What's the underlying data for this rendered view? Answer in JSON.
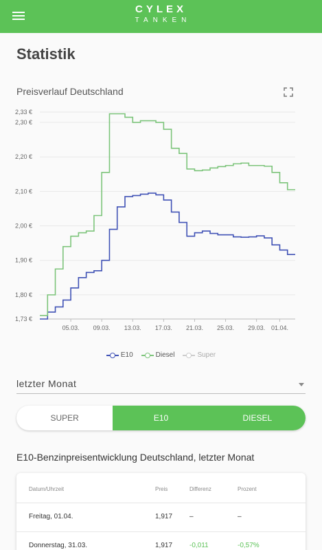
{
  "appbar": {
    "logo_top": "CYLEX",
    "logo_bottom": "TANKEN",
    "brand_color": "#5cc257"
  },
  "page": {
    "title": "Statistik"
  },
  "chart": {
    "title": "Preisverlauf Deutschland"
  },
  "chart_data": {
    "type": "line",
    "step": true,
    "xticks": [
      "05.03.",
      "09.03.",
      "13.03.",
      "17.03.",
      "21.03.",
      "25.03.",
      "29.03.",
      "01.04."
    ],
    "yticks": [
      "1,73 €",
      "1,80 €",
      "1,90 €",
      "2,00 €",
      "2,10 €",
      "2,20 €",
      "2,30 €",
      "2,33 €"
    ],
    "ytick_values": [
      1.73,
      1.8,
      1.9,
      2.0,
      2.1,
      2.2,
      2.3,
      2.33
    ],
    "ylim": [
      1.73,
      2.33
    ],
    "grid": true,
    "legend_position": "bottom",
    "series": [
      {
        "name": "E10",
        "color": "#3f51b5",
        "visible": true,
        "values": [
          1.73,
          1.75,
          1.765,
          1.785,
          1.82,
          1.85,
          1.865,
          1.87,
          1.9,
          1.99,
          2.055,
          2.085,
          2.088,
          2.092,
          2.095,
          2.09,
          2.075,
          2.04,
          2.01,
          1.97,
          1.98,
          1.985,
          1.978,
          1.974,
          1.974,
          1.968,
          1.967,
          1.968,
          1.971,
          1.965,
          1.945,
          1.93,
          1.917,
          1.917
        ]
      },
      {
        "name": "Diesel",
        "color": "#7cc47a",
        "visible": true,
        "values": [
          1.74,
          1.8,
          1.875,
          1.94,
          1.97,
          1.98,
          1.985,
          2.03,
          2.155,
          2.325,
          2.325,
          2.315,
          2.3,
          2.305,
          2.305,
          2.3,
          2.28,
          2.225,
          2.21,
          2.165,
          2.16,
          2.162,
          2.168,
          2.172,
          2.175,
          2.18,
          2.182,
          2.175,
          2.175,
          2.173,
          2.155,
          2.125,
          2.105,
          2.105
        ]
      },
      {
        "name": "Super",
        "color": "#bdbdbd",
        "visible": false,
        "values": []
      }
    ]
  },
  "filter": {
    "period": "letzter Monat"
  },
  "fuel_tabs": [
    "SUPER",
    "E10",
    "DIESEL"
  ],
  "active_tab": "E10",
  "table": {
    "title": "E10-Benzinpreisentwicklung Deutschland, letzter Monat",
    "headers": [
      "Datum/Uhrzeit",
      "Preis",
      "Differenz",
      "Prozent"
    ],
    "rows": [
      {
        "date": "Freitag, 01.04.",
        "price": "1,917",
        "diff": "–",
        "pct": "–"
      },
      {
        "date": "Donnerstag, 31.03.",
        "price": "1,917",
        "diff": "-0,011",
        "pct": "-0,57%"
      }
    ]
  }
}
